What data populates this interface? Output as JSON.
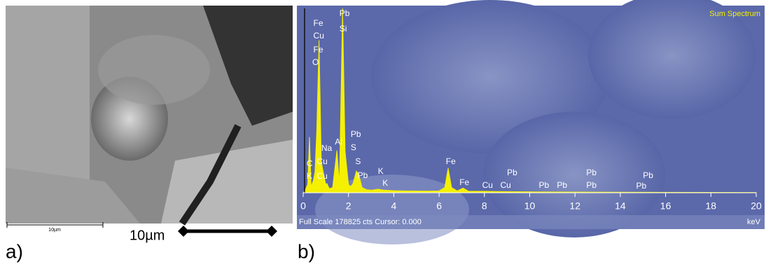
{
  "panel_a": {
    "label": "a)",
    "scale_small": "10µm",
    "scale_big": "10µm"
  },
  "panel_b": {
    "label": "b)"
  },
  "chart_data": {
    "type": "area",
    "title": "Sum Spectrum",
    "footer": "Full Scale 178825 cts Cursor: 0.000",
    "x_label": "keV",
    "color": "#f5f000",
    "x": [
      0,
      0.1,
      0.2,
      0.28,
      0.35,
      0.45,
      0.52,
      0.6,
      0.7,
      0.8,
      0.93,
      1.0,
      1.05,
      1.15,
      1.3,
      1.49,
      1.6,
      1.74,
      1.85,
      2.0,
      2.1,
      2.2,
      2.35,
      2.45,
      2.6,
      2.8,
      3.0,
      3.3,
      3.6,
      4.0,
      4.5,
      5.0,
      5.5,
      6.0,
      6.25,
      6.4,
      6.55,
      6.8,
      7.06,
      7.3,
      8.0,
      8.6,
      9.0,
      10,
      12,
      14,
      16,
      18,
      20
    ],
    "values": [
      0,
      3000,
      8000,
      54000,
      6000,
      12000,
      20000,
      60000,
      148000,
      30000,
      15000,
      8000,
      9000,
      4000,
      5000,
      41000,
      8000,
      178825,
      40000,
      8000,
      6000,
      9000,
      21000,
      18000,
      5000,
      3000,
      2500,
      3500,
      2500,
      2000,
      1800,
      1700,
      1600,
      1800,
      5000,
      24000,
      5000,
      1800,
      4500,
      1500,
      1400,
      1200,
      1100,
      900,
      700,
      500,
      400,
      300,
      250
    ],
    "xlim": [
      0,
      20
    ],
    "xticks": [
      0,
      2,
      4,
      6,
      8,
      10,
      12,
      14,
      16,
      18,
      20
    ],
    "ylim": [
      0,
      178825
    ],
    "peak_labels": [
      {
        "label": "Fe",
        "x": 0.45
      },
      {
        "label": "Cu",
        "x": 0.45
      },
      {
        "label": "Fe",
        "x": 0.45
      },
      {
        "label": "O",
        "x": 0.4
      },
      {
        "label": "Pb",
        "x": 1.6
      },
      {
        "label": "Si",
        "x": 1.6
      },
      {
        "label": "C",
        "x": 0.15
      },
      {
        "label": "K",
        "x": 0.15
      },
      {
        "label": "Cu",
        "x": 0.6
      },
      {
        "label": "Cu",
        "x": 0.6
      },
      {
        "label": "Na",
        "x": 0.8
      },
      {
        "label": "Al",
        "x": 1.4
      },
      {
        "label": "Pb",
        "x": 2.1
      },
      {
        "label": "S",
        "x": 2.1
      },
      {
        "label": "S",
        "x": 2.3
      },
      {
        "label": "Pb",
        "x": 2.4
      },
      {
        "label": "K",
        "x": 3.3
      },
      {
        "label": "K",
        "x": 3.5
      },
      {
        "label": "Fe",
        "x": 6.3
      },
      {
        "label": "Fe",
        "x": 6.9
      },
      {
        "label": "Cu",
        "x": 7.9
      },
      {
        "label": "Pb",
        "x": 9.0
      },
      {
        "label": "Cu",
        "x": 8.7
      },
      {
        "label": "Pb",
        "x": 10.4
      },
      {
        "label": "Pb",
        "x": 11.2
      },
      {
        "label": "Pb",
        "x": 12.5
      },
      {
        "label": "Pb",
        "x": 12.5
      },
      {
        "label": "Pb",
        "x": 15.0
      },
      {
        "label": "Pb",
        "x": 14.7
      }
    ]
  }
}
